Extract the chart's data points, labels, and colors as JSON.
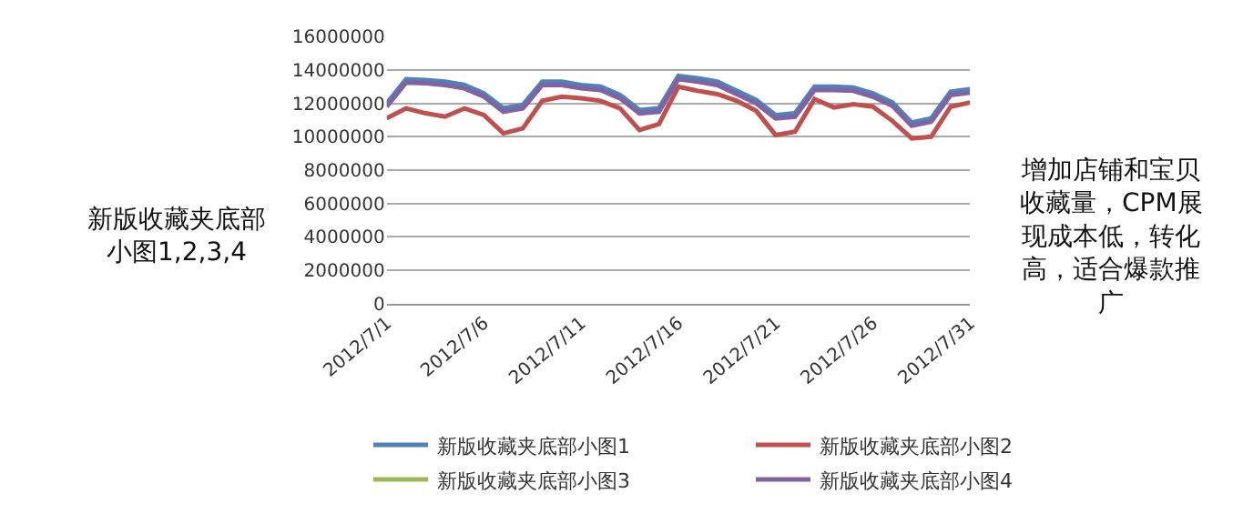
{
  "chart_data": {
    "type": "line",
    "x": [
      "2012-07-01",
      "2012-07-02",
      "2012-07-03",
      "2012-07-04",
      "2012-07-05",
      "2012-07-06",
      "2012-07-07",
      "2012-07-08",
      "2012-07-09",
      "2012-07-10",
      "2012-07-11",
      "2012-07-12",
      "2012-07-13",
      "2012-07-14",
      "2012-07-15",
      "2012-07-16",
      "2012-07-17",
      "2012-07-18",
      "2012-07-19",
      "2012-07-20",
      "2012-07-21",
      "2012-07-22",
      "2012-07-23",
      "2012-07-24",
      "2012-07-25",
      "2012-07-26",
      "2012-07-27",
      "2012-07-28",
      "2012-07-29",
      "2012-07-30",
      "2012-07-31"
    ],
    "series": [
      {
        "name": "新版收藏夹底部小图1",
        "color": "#4f81bd",
        "values": [
          12000000,
          13450000,
          13400000,
          13300000,
          13100000,
          12600000,
          11700000,
          11900000,
          13300000,
          13300000,
          13100000,
          13000000,
          12500000,
          11600000,
          11700000,
          13650000,
          13500000,
          13300000,
          12750000,
          12200000,
          11300000,
          11400000,
          13000000,
          13000000,
          12950000,
          12600000,
          12050000,
          10850000,
          11100000,
          12700000,
          12850000
        ]
      },
      {
        "name": "新版收藏夹底部小图2",
        "color": "#c0504d",
        "values": [
          11100000,
          11700000,
          11400000,
          11200000,
          11700000,
          11300000,
          10200000,
          10500000,
          12150000,
          12400000,
          12300000,
          12150000,
          11700000,
          10400000,
          10750000,
          13000000,
          12750000,
          12550000,
          12150000,
          11550000,
          10100000,
          10300000,
          12250000,
          11750000,
          11950000,
          11800000,
          10950000,
          9900000,
          10000000,
          11800000,
          12050000
        ]
      },
      {
        "name": "新版收藏夹底部小图3",
        "color": "#9bbb59",
        "values": [
          null,
          null,
          null,
          null,
          null,
          null,
          null,
          null,
          null,
          null,
          null,
          null,
          null,
          null,
          null,
          null,
          null,
          null,
          null,
          null,
          null,
          null,
          null,
          null,
          null,
          null,
          null,
          null,
          null,
          null,
          null
        ]
      },
      {
        "name": "新版收藏夹底部小图4",
        "color": "#8064a2",
        "values": [
          11800000,
          13250000,
          13200000,
          13100000,
          12900000,
          12400000,
          11500000,
          11700000,
          13100000,
          13100000,
          12900000,
          12800000,
          12300000,
          11400000,
          11500000,
          13450000,
          13300000,
          13100000,
          12550000,
          12000000,
          11100000,
          11200000,
          12800000,
          12800000,
          12750000,
          12400000,
          11850000,
          10650000,
          10900000,
          12500000,
          12650000
        ]
      }
    ],
    "xlim": [
      "2012-07-01",
      "2012-07-31"
    ],
    "xticks": [
      {
        "value": "2012-07-01",
        "label": "2012/7/1"
      },
      {
        "value": "2012-07-06",
        "label": "2012/7/6"
      },
      {
        "value": "2012-07-11",
        "label": "2012/7/11"
      },
      {
        "value": "2012-07-16",
        "label": "2012/7/16"
      },
      {
        "value": "2012-07-21",
        "label": "2012/7/21"
      },
      {
        "value": "2012-07-26",
        "label": "2012/7/26"
      },
      {
        "value": "2012-07-31",
        "label": "2012/7/31"
      }
    ],
    "ylim": [
      0,
      16000000
    ],
    "yticks": [
      0,
      2000000,
      4000000,
      6000000,
      8000000,
      10000000,
      12000000,
      14000000,
      16000000
    ],
    "grid": "y",
    "legend": "bottom",
    "marker": "none",
    "line_style": "solid",
    "annotations": [
      "新版收藏夹底部小图1,2,3,4",
      "增加店铺和宝贝收藏量，CPM展现成本低，转化高，适合爆款推广"
    ]
  }
}
